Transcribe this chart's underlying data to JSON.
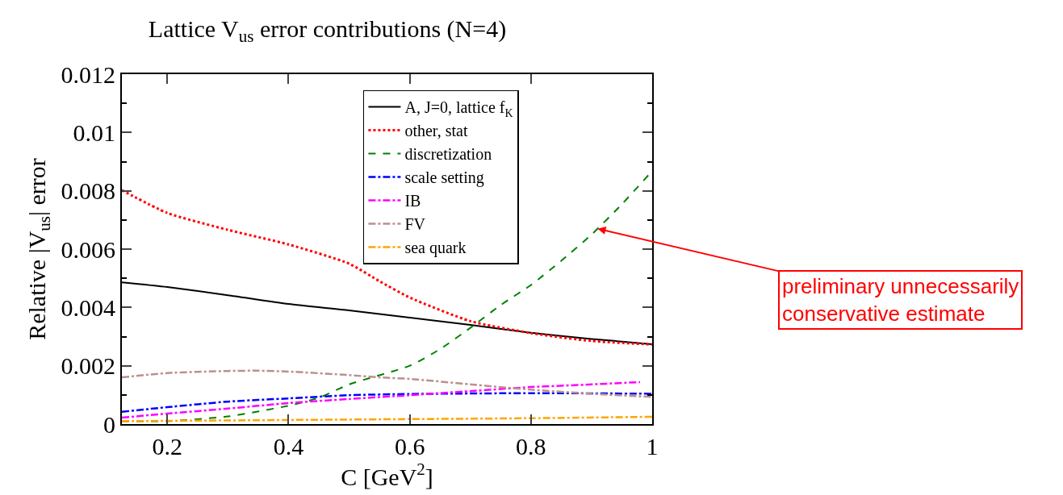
{
  "chart_data": {
    "type": "line",
    "title": "Lattice V$_{us}$ error contributions (N=4)",
    "xlabel": "C [GeV$^{2}$]",
    "ylabel": "Relative |V$_{us}$| error",
    "xlim": [
      0.125,
      1
    ],
    "xticks": [
      0.2,
      0.4,
      0.6,
      0.8,
      1
    ],
    "ylim": [
      0,
      0.012
    ],
    "yticks": [
      0,
      0.002,
      0.004,
      0.006,
      0.008,
      0.01,
      0.012
    ],
    "legend": "top",
    "marker": "none",
    "series": [
      {
        "name": "A, J=0, lattice f$_{K}$",
        "color": "#000000",
        "line_style": "solid",
        "x": [
          0.125,
          0.2,
          0.3,
          0.4,
          0.5,
          0.6,
          0.7,
          0.8,
          0.9,
          1.0
        ],
        "values": [
          0.00486,
          0.0047,
          0.00442,
          0.00412,
          0.0039,
          0.00365,
          0.0034,
          0.00313,
          0.00292,
          0.00274
        ]
      },
      {
        "name": "other, stat",
        "color": "#ff0000",
        "line_style": "dotted",
        "x": [
          0.125,
          0.2,
          0.3,
          0.4,
          0.5,
          0.55,
          0.6,
          0.7,
          0.8,
          0.9,
          1.0
        ],
        "values": [
          0.00802,
          0.00724,
          0.00666,
          0.00616,
          0.0055,
          0.0049,
          0.00434,
          0.00353,
          0.00312,
          0.00285,
          0.00273
        ]
      },
      {
        "name": "discretization",
        "color": "#008000",
        "line_style": "dashed",
        "x": [
          0.125,
          0.2,
          0.3,
          0.4,
          0.45,
          0.5,
          0.6,
          0.65,
          0.7,
          0.75,
          0.8,
          0.85,
          0.9,
          0.95,
          1.0
        ],
        "values": [
          0.0001,
          0.0001,
          0.00026,
          0.00063,
          0.0009,
          0.00136,
          0.002,
          0.00257,
          0.0033,
          0.00408,
          0.00477,
          0.0056,
          0.0065,
          0.00754,
          0.00868
        ]
      },
      {
        "name": "scale setting",
        "color": "#0000ff",
        "line_style": "dashdot",
        "x": [
          0.125,
          0.2,
          0.3,
          0.4,
          0.5,
          0.6,
          0.8,
          1.0
        ],
        "values": [
          0.00042,
          0.00058,
          0.00077,
          0.00088,
          0.00099,
          0.00103,
          0.00106,
          0.00104
        ]
      },
      {
        "name": "IB",
        "color": "#ff00ff",
        "line_style": "dashdot",
        "x": [
          0.125,
          0.2,
          0.3,
          0.4,
          0.5,
          0.6,
          0.7,
          0.8,
          0.9,
          0.98
        ],
        "values": [
          0.00022,
          0.00036,
          0.00053,
          0.00072,
          0.00086,
          0.00099,
          0.00113,
          0.00127,
          0.00136,
          0.00144
        ]
      },
      {
        "name": "FV",
        "color": "#bc8f8f",
        "line_style": "dashdot",
        "x": [
          0.125,
          0.2,
          0.3,
          0.35,
          0.4,
          0.5,
          0.55,
          0.6,
          0.7,
          0.8,
          0.9,
          1.0
        ],
        "values": [
          0.0016,
          0.00175,
          0.00182,
          0.00183,
          0.0018,
          0.00168,
          0.0016,
          0.00155,
          0.00136,
          0.00118,
          0.00104,
          0.00093
        ]
      },
      {
        "name": "sea quark",
        "color": "#ffa500",
        "line_style": "dashdot",
        "x": [
          0.125,
          0.4,
          0.6,
          0.8,
          1.0
        ],
        "values": [
          0.0001,
          0.00014,
          0.00017,
          0.0002,
          0.00025
        ]
      }
    ],
    "annotations": [
      {
        "text": "preliminary unnecessarily\nconservative estimate",
        "x": 0.91,
        "y": 0.0067
      }
    ]
  }
}
